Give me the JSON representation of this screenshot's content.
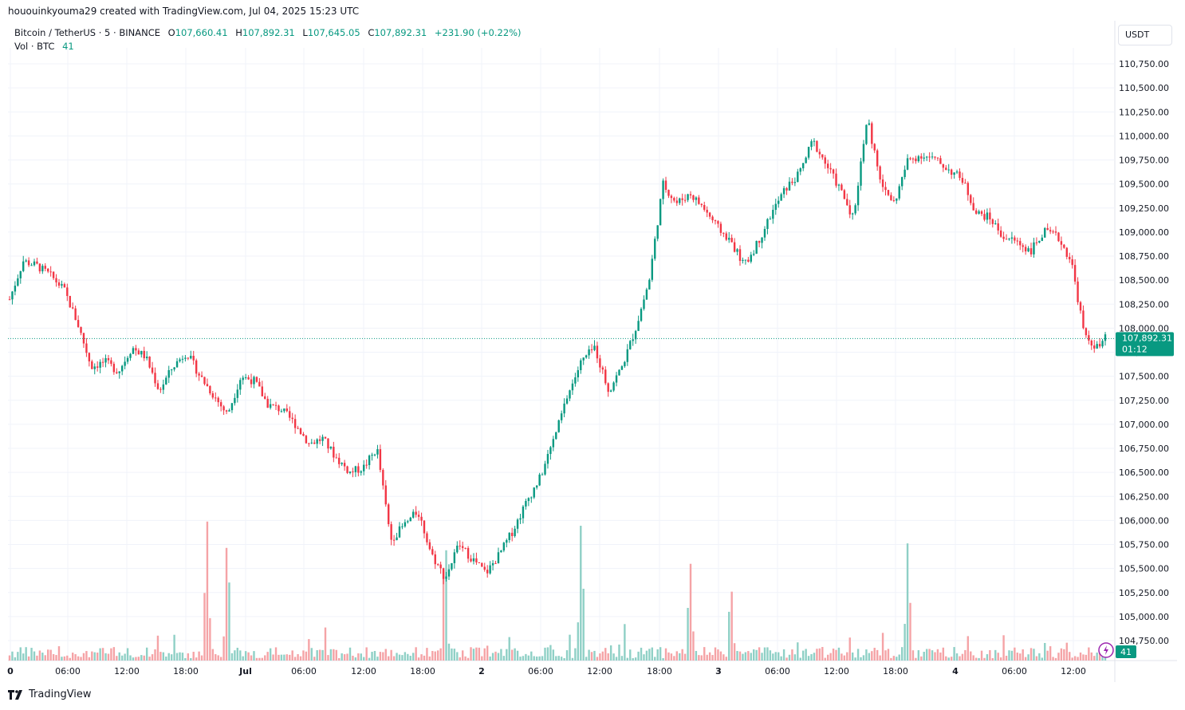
{
  "header": {
    "credit": "hououinkyouma29 created with TradingView.com, Jul 04, 2025 15:23 UTC"
  },
  "legend": {
    "symbol": "Bitcoin / TetherUS · 5 · BINANCE",
    "o_label": "O",
    "o_value": "107,660.41",
    "h_label": "H",
    "h_value": "107,892.31",
    "l_label": "L",
    "l_value": "107,645.05",
    "c_label": "C",
    "c_value": "107,892.31",
    "change": "+231.90 (+0.22%)",
    "vol_label": "Vol · BTC",
    "vol_value": "41"
  },
  "currency_button": "USDT",
  "footer": {
    "brand": "TradingView",
    "icon": "tradingview-logo-icon"
  },
  "colors": {
    "up": "#089981",
    "down": "#f23645",
    "vol_up": "#8fd0c6",
    "vol_down": "#f5a3a6",
    "grid": "#f0f3fa"
  },
  "chart_data": {
    "type": "candlestick",
    "ylim": [
      104650,
      110900
    ],
    "y_ticks": [
      "110,750.00",
      "110,500.00",
      "110,250.00",
      "110,000.00",
      "109,750.00",
      "109,500.00",
      "109,250.00",
      "109,000.00",
      "108,750.00",
      "108,500.00",
      "108,250.00",
      "108,000.00",
      "107,750.00",
      "107,500.00",
      "107,250.00",
      "107,000.00",
      "106,750.00",
      "106,500.00",
      "106,250.00",
      "106,000.00",
      "105,750.00",
      "105,500.00",
      "105,250.00",
      "105,000.00",
      "104,750.00"
    ],
    "x_ticks": [
      "0",
      "06:00",
      "12:00",
      "18:00",
      "Jul",
      "06:00",
      "12:00",
      "18:00",
      "2",
      "06:00",
      "12:00",
      "18:00",
      "3",
      "06:00",
      "12:00",
      "18:00",
      "4",
      "06:00",
      "12:00"
    ],
    "last_price": "107,892.31",
    "last_price_value": 107892.31,
    "countdown": "01:12",
    "volume_last": "41",
    "price_path": [
      [
        0,
        108300
      ],
      [
        2,
        108700
      ],
      [
        4,
        108650
      ],
      [
        6,
        108550
      ],
      [
        8,
        108400
      ],
      [
        10,
        108050
      ],
      [
        12,
        107600
      ],
      [
        14,
        107650
      ],
      [
        16,
        107550
      ],
      [
        18,
        107800
      ],
      [
        20,
        107700
      ],
      [
        22,
        107350
      ],
      [
        24,
        107600
      ],
      [
        26,
        107750
      ],
      [
        28,
        107500
      ],
      [
        30,
        107300
      ],
      [
        32,
        107100
      ],
      [
        34,
        107500
      ],
      [
        36,
        107450
      ],
      [
        38,
        107200
      ],
      [
        40,
        107150
      ],
      [
        42,
        107000
      ],
      [
        44,
        106800
      ],
      [
        46,
        106850
      ],
      [
        48,
        106650
      ],
      [
        50,
        106500
      ],
      [
        52,
        106550
      ],
      [
        54,
        106750
      ],
      [
        56,
        105800
      ],
      [
        58,
        105950
      ],
      [
        60,
        106100
      ],
      [
        62,
        105650
      ],
      [
        64,
        105400
      ],
      [
        66,
        105750
      ],
      [
        68,
        105600
      ],
      [
        70,
        105450
      ],
      [
        72,
        105650
      ],
      [
        74,
        105900
      ],
      [
        76,
        106200
      ],
      [
        78,
        106450
      ],
      [
        80,
        106850
      ],
      [
        82,
        107300
      ],
      [
        84,
        107650
      ],
      [
        86,
        107800
      ],
      [
        88,
        107350
      ],
      [
        90,
        107600
      ],
      [
        92,
        108000
      ],
      [
        94,
        108500
      ],
      [
        96,
        109500
      ],
      [
        98,
        109300
      ],
      [
        100,
        109400
      ],
      [
        102,
        109250
      ],
      [
        104,
        109050
      ],
      [
        106,
        108900
      ],
      [
        108,
        108650
      ],
      [
        110,
        108900
      ],
      [
        112,
        109200
      ],
      [
        114,
        109450
      ],
      [
        116,
        109600
      ],
      [
        118,
        109950
      ],
      [
        120,
        109700
      ],
      [
        122,
        109450
      ],
      [
        124,
        109150
      ],
      [
        126,
        110200
      ],
      [
        128,
        109500
      ],
      [
        130,
        109300
      ],
      [
        132,
        109750
      ],
      [
        134,
        109800
      ],
      [
        136,
        109750
      ],
      [
        138,
        109650
      ],
      [
        140,
        109550
      ],
      [
        142,
        109200
      ],
      [
        144,
        109150
      ],
      [
        146,
        108950
      ],
      [
        148,
        108900
      ],
      [
        150,
        108800
      ],
      [
        152,
        109000
      ],
      [
        154,
        108950
      ],
      [
        156,
        108700
      ],
      [
        158,
        107900
      ],
      [
        160,
        107790
      ],
      [
        161,
        107892
      ]
    ],
    "volume_spikes": [
      [
        29,
        0.6
      ],
      [
        32,
        0.55
      ],
      [
        64,
        0.58
      ],
      [
        84,
        0.6
      ],
      [
        100,
        0.42
      ],
      [
        106,
        0.32
      ],
      [
        132,
        0.5
      ]
    ]
  }
}
